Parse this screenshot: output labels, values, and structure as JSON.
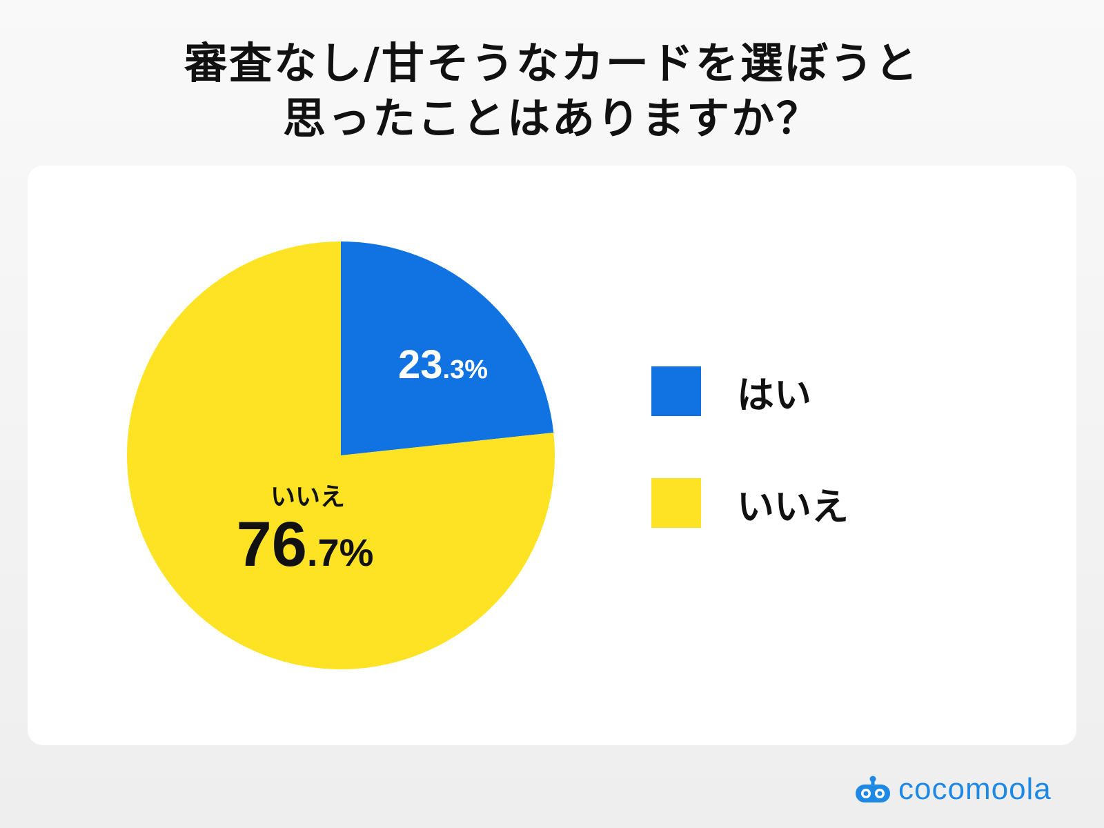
{
  "title_lines": [
    "審査なし/甘そうなカードを選ぼうと",
    "思ったことはありますか？"
  ],
  "chart_data": {
    "type": "pie",
    "title": "審査なし/甘そうなカードを選ぼうと思ったことはありますか？",
    "slices": [
      {
        "label": "はい",
        "value": 23.3,
        "value_int": "23",
        "value_dec": ".3%",
        "color": "#1172e2"
      },
      {
        "label": "いいえ",
        "value": 76.7,
        "value_int": "76",
        "value_dec": ".7%",
        "color": "#fde324"
      }
    ],
    "legend_position": "right"
  },
  "brand": {
    "name": "cocomoola",
    "color": "#1e88e5"
  }
}
